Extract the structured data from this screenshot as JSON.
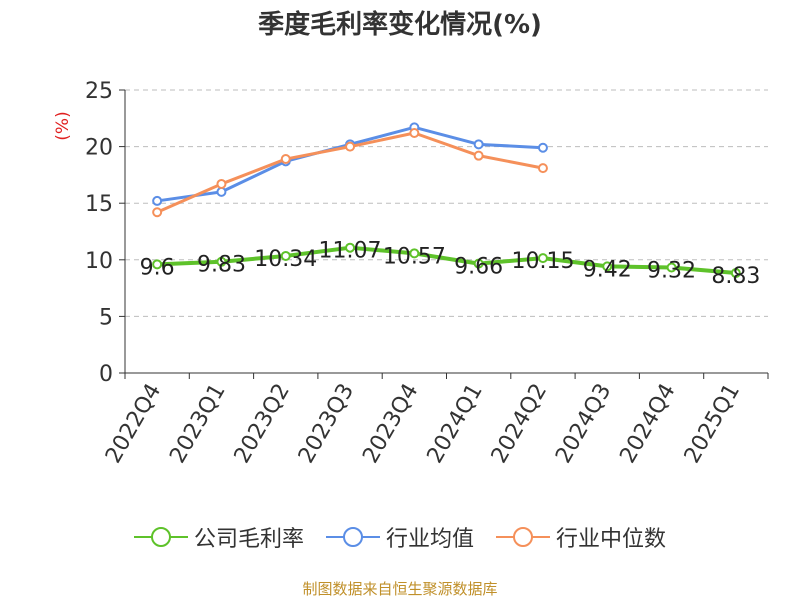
{
  "chart_data": {
    "type": "line",
    "title": "季度毛利率变化情况(%)",
    "ylabel": "(%)",
    "xlabel": "",
    "categories": [
      "2022Q4",
      "2023Q1",
      "2023Q2",
      "2023Q3",
      "2023Q4",
      "2024Q1",
      "2024Q2",
      "2024Q3",
      "2024Q4",
      "2025Q1"
    ],
    "ylim": [
      0,
      25
    ],
    "yticks": [
      0,
      5,
      10,
      15,
      20,
      25
    ],
    "grid": "horizontal-dashed",
    "legend_position": "bottom",
    "series": [
      {
        "name": "公司毛利率",
        "color": "#5ec22a",
        "show_labels": true,
        "values": [
          9.6,
          9.83,
          10.34,
          11.07,
          10.57,
          9.66,
          10.15,
          9.42,
          9.32,
          8.83
        ],
        "labels": [
          "9.6",
          "9.83",
          "10.34",
          "11.07",
          "10.57",
          "9.66",
          "10.15",
          "9.42",
          "9.32",
          "8.83"
        ]
      },
      {
        "name": "行业均值",
        "color": "#5b8ee6",
        "show_labels": false,
        "values": [
          15.2,
          16.0,
          18.7,
          20.2,
          21.7,
          20.2,
          19.9,
          null,
          null,
          null
        ]
      },
      {
        "name": "行业中位数",
        "color": "#f5905a",
        "show_labels": false,
        "values": [
          14.2,
          16.7,
          18.9,
          20.0,
          21.2,
          19.2,
          18.1,
          null,
          null,
          null
        ]
      }
    ]
  },
  "footer": {
    "source": "制图数据来自恒生聚源数据库"
  }
}
